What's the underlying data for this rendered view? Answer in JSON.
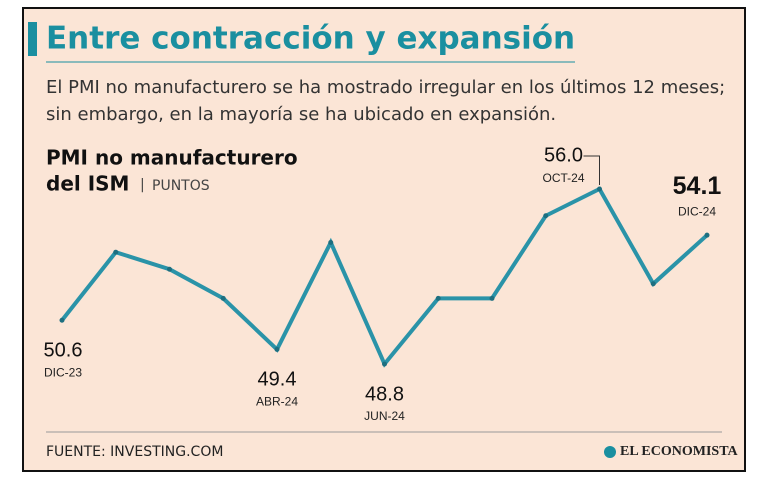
{
  "title": "Entre contracción y expansión",
  "subtitle": [
    "El PMI no manufacturero se ha mostrado irregular en los últimos 12 meses;",
    "sin embargo, en la mayoría se ha ubicado en expansión."
  ],
  "source": "FUENTE: INVESTING.COM",
  "brand": "EL ECONOMISTA",
  "chart_data": {
    "type": "line",
    "title": [
      "PMI no manufacturero",
      "del ISM"
    ],
    "unit": "PUNTOS",
    "categories": [
      "DIC-23",
      null,
      null,
      null,
      "ABR-24",
      null,
      "JUN-24",
      null,
      null,
      null,
      "OCT-24",
      null,
      "DIC-24"
    ],
    "series": [
      {
        "name": "PMI no manufacturero del ISM",
        "color": "#2a93a8",
        "values": [
          50.6,
          53.4,
          52.7,
          51.5,
          49.4,
          53.8,
          48.8,
          51.5,
          51.5,
          54.9,
          56.0,
          52.1,
          54.1
        ],
        "value_labels": [
          "50.6",
          null,
          null,
          null,
          "49.4",
          null,
          "48.8",
          null,
          null,
          null,
          "56.0",
          null,
          "54.1"
        ]
      }
    ]
  }
}
